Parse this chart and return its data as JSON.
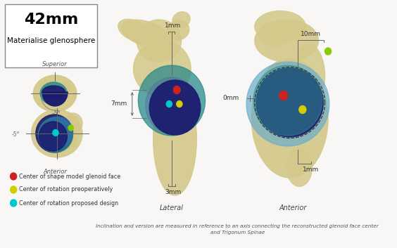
{
  "bg_color": "#f0eeeb",
  "title_text": "42mm",
  "subtitle_text": "Materialise glenosphere",
  "bone_color": "#d4c98a",
  "bone_shadow": "#b8a96a",
  "dark_blue": "#1a1a6e",
  "teal_blue": "#2a8a8a",
  "light_blue": "#3070b0",
  "sky_blue": "#6aaecc",
  "dot_red": "#cc2222",
  "dot_yellow": "#d4cc00",
  "dot_cyan": "#00c8c8",
  "dot_green": "#88cc00",
  "line_color": "#666666",
  "text_color": "#333333",
  "legend_items": [
    {
      "color": "#cc2222",
      "label": "Center of shape model glenoid face"
    },
    {
      "color": "#d4cc00",
      "label": "Center of rotation preoperatively"
    },
    {
      "color": "#00c8c8",
      "label": "Center of rotation proposed design"
    }
  ],
  "footnote": "Inclination and version are measured in reference to an axis connecting the reconstructed glenoid face center\nand Trigonum Spinae"
}
